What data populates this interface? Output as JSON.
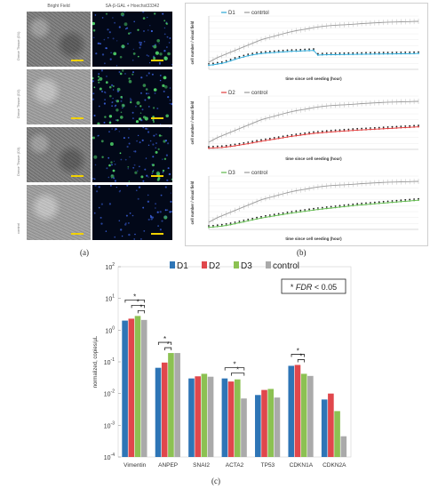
{
  "panel_a": {
    "col_headers": [
      "Bright Field",
      "SA-β-GAL + Hoechst33342"
    ],
    "row_labels": [
      "Donor Tissue (D1)",
      "Donor Tissue (D2)",
      "Donor Tissue (D3)",
      "control"
    ],
    "label": "(a)"
  },
  "panel_b": {
    "label": "(b)"
  },
  "panel_c": {
    "label": "(c)"
  },
  "chart_data": [
    {
      "type": "line",
      "xlabel": "time since cell seeding (hour)",
      "ylabel": "cell number / visual field",
      "x": [
        0,
        2,
        4,
        6,
        8,
        10,
        12,
        14,
        16,
        18,
        20,
        22,
        24,
        26,
        28,
        30,
        32,
        34,
        36,
        38,
        40,
        42,
        44,
        46,
        48,
        50,
        52,
        54,
        56,
        58,
        60,
        62,
        64,
        66,
        68,
        70,
        72,
        74,
        76,
        78,
        80,
        82,
        84,
        86,
        88,
        90,
        92,
        94,
        96
      ],
      "series": [
        {
          "name": "D1",
          "color": "#2aa7d6",
          "values": [
            35,
            38,
            45,
            50,
            60,
            72,
            85,
            95,
            105,
            115,
            122,
            128,
            133,
            137,
            140,
            142,
            145,
            147,
            150,
            152,
            153,
            155,
            157,
            158,
            160,
            120,
            122,
            123,
            124,
            124,
            125,
            125,
            126,
            126,
            127,
            127,
            128,
            128,
            129,
            129,
            130,
            130,
            130,
            131,
            131,
            132,
            132,
            133,
            134
          ]
        },
        {
          "name": "contrtol",
          "color": "#999999",
          "values": [
            60,
            80,
            100,
            115,
            130,
            145,
            160,
            175,
            190,
            205,
            220,
            235,
            250,
            260,
            270,
            280,
            290,
            300,
            310,
            318,
            326,
            332,
            338,
            345,
            352,
            358,
            362,
            366,
            370,
            372,
            374,
            376,
            378,
            380,
            383,
            386,
            388,
            390,
            392,
            394,
            396,
            398,
            399,
            400,
            401,
            402,
            403,
            404,
            405
          ]
        }
      ]
    },
    {
      "type": "line",
      "xlabel": "time since cell seeding (hour)",
      "ylabel": "cell number / visual field",
      "x": [
        0,
        2,
        4,
        6,
        8,
        10,
        12,
        14,
        16,
        18,
        20,
        22,
        24,
        26,
        28,
        30,
        32,
        34,
        36,
        38,
        40,
        42,
        44,
        46,
        48,
        50,
        52,
        54,
        56,
        58,
        60,
        62,
        64,
        66,
        68,
        70,
        72,
        74,
        76,
        78,
        80,
        82,
        84,
        86,
        88,
        90,
        92,
        94,
        96
      ],
      "series": [
        {
          "name": "D2",
          "color": "#e03a3a",
          "values": [
            10,
            12,
            14,
            16,
            20,
            25,
            30,
            36,
            42,
            48,
            55,
            62,
            68,
            74,
            80,
            86,
            92,
            98,
            104,
            110,
            115,
            120,
            125,
            130,
            135,
            138,
            141,
            144,
            147,
            150,
            152,
            155,
            157,
            160,
            162,
            164,
            166,
            168,
            170,
            172,
            174,
            176,
            178,
            180,
            182,
            184,
            186,
            188,
            190
          ]
        },
        {
          "name": "control",
          "color": "#999999",
          "values": [
            60,
            80,
            100,
            115,
            130,
            145,
            160,
            175,
            190,
            205,
            220,
            235,
            250,
            260,
            270,
            280,
            290,
            300,
            310,
            318,
            326,
            332,
            338,
            345,
            352,
            358,
            362,
            366,
            370,
            372,
            374,
            376,
            378,
            380,
            383,
            386,
            388,
            390,
            392,
            394,
            396,
            398,
            399,
            400,
            401,
            402,
            403,
            404,
            405
          ]
        }
      ]
    },
    {
      "type": "line",
      "xlabel": "time since cell seeding (hour)",
      "ylabel": "cell number / visual field",
      "x": [
        0,
        2,
        4,
        6,
        8,
        10,
        12,
        14,
        16,
        18,
        20,
        22,
        24,
        26,
        28,
        30,
        32,
        34,
        36,
        38,
        40,
        42,
        44,
        46,
        48,
        50,
        52,
        54,
        56,
        58,
        60,
        62,
        64,
        66,
        68,
        70,
        72,
        74,
        76,
        78,
        80,
        82,
        84,
        86,
        88,
        90,
        92,
        94,
        96
      ],
      "series": [
        {
          "name": "D3",
          "color": "#5db84a",
          "values": [
            18,
            20,
            24,
            28,
            34,
            40,
            48,
            56,
            64,
            72,
            80,
            88,
            95,
            102,
            108,
            114,
            120,
            126,
            132,
            138,
            143,
            148,
            153,
            158,
            163,
            168,
            172,
            176,
            180,
            184,
            188,
            192,
            196,
            200,
            204,
            207,
            210,
            213,
            216,
            219,
            222,
            225,
            228,
            231,
            234,
            237,
            240,
            243,
            246
          ]
        },
        {
          "name": "control",
          "color": "#999999",
          "values": [
            60,
            80,
            100,
            115,
            130,
            145,
            160,
            175,
            190,
            205,
            220,
            235,
            250,
            260,
            270,
            280,
            290,
            300,
            310,
            318,
            326,
            332,
            338,
            345,
            352,
            358,
            362,
            366,
            370,
            372,
            374,
            376,
            378,
            380,
            383,
            386,
            388,
            390,
            392,
            394,
            396,
            398,
            399,
            400,
            401,
            402,
            403,
            404,
            405
          ]
        }
      ]
    },
    {
      "type": "bar",
      "log_scale": true,
      "ylabel": "normalized, copies/µL",
      "ylim_exponents": [
        -4,
        2
      ],
      "categories": [
        "Vimentin",
        "ANPEP",
        "SNAI2",
        "ACTA2",
        "TP53",
        "CDKN1A",
        "CDKN2A"
      ],
      "series": [
        {
          "name": "D1",
          "color": "#2e75b6",
          "values": [
            2.0,
            0.065,
            0.03,
            0.03,
            0.009,
            0.075,
            0.0065
          ]
        },
        {
          "name": "D2",
          "color": "#e0474c",
          "values": [
            2.3,
            0.095,
            0.035,
            0.024,
            0.013,
            0.08,
            0.01
          ]
        },
        {
          "name": "D3",
          "color": "#8cc152",
          "values": [
            2.8,
            0.19,
            0.042,
            0.028,
            0.014,
            0.042,
            0.0028
          ]
        },
        {
          "name": "control",
          "color": "#aaaaaa",
          "values": [
            2.1,
            0.19,
            0.034,
            0.007,
            0.0075,
            0.036,
            0.00045
          ]
        }
      ],
      "annotation": {
        "prefix": "*",
        "text": "FDR",
        "suffix": "< 0.05"
      }
    }
  ]
}
